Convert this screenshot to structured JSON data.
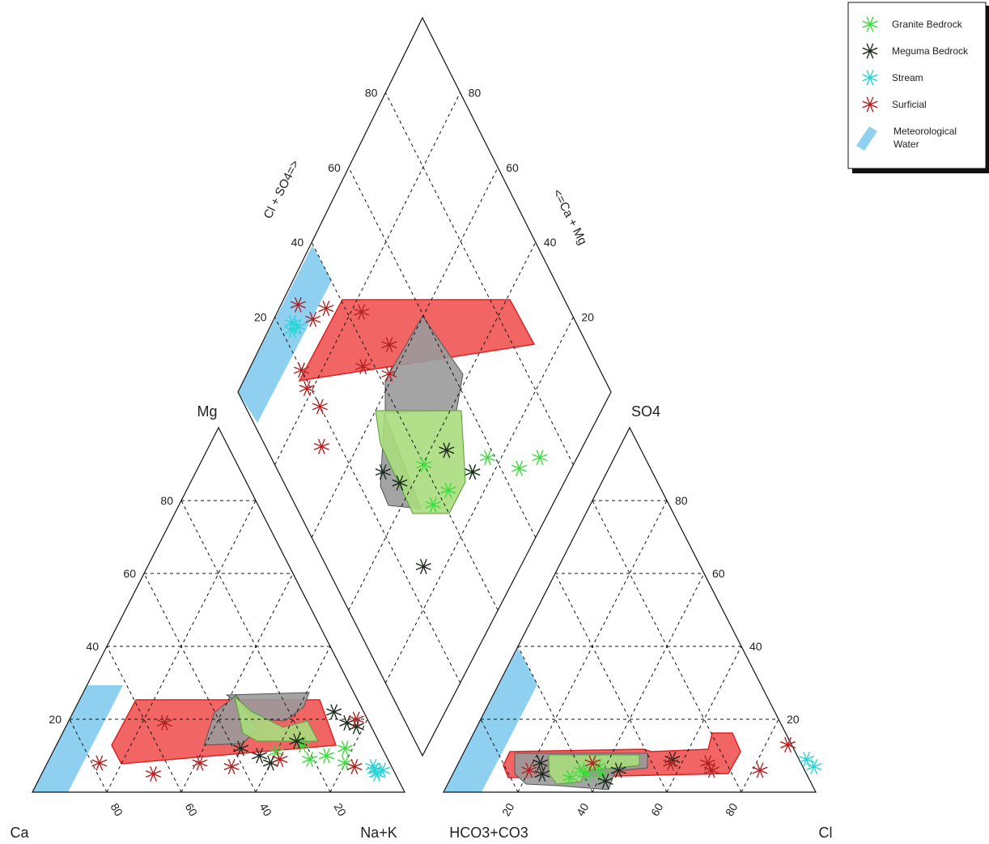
{
  "chart_data": {
    "type": "scatter",
    "subtype": "piper-diagram",
    "grid": true,
    "legend": {
      "placement": "top-right",
      "entries": [
        {
          "name": "Granite Bedrock",
          "color": "#3ddc3d",
          "marker": "asterisk"
        },
        {
          "name": "Meguma Bedrock",
          "color": "#1f2a1f",
          "marker": "asterisk"
        },
        {
          "name": "Stream",
          "color": "#29d3d8",
          "marker": "asterisk"
        },
        {
          "name": "Surficial",
          "color": "#b22222",
          "marker": "asterisk"
        },
        {
          "name": "Meteorological Water",
          "color": "#8fd0f0",
          "marker": "band"
        }
      ]
    },
    "cation_triangle": {
      "corners": {
        "left": "Ca",
        "top": "Mg",
        "right": "Na+K"
      },
      "bottom_ticks": [
        "80",
        "60",
        "40",
        "20"
      ],
      "left_ticks": [
        "80",
        "60",
        "40",
        "20"
      ],
      "series": [
        {
          "name": "Granite Bedrock",
          "points_naK_mg": [
            [
              60,
              11
            ],
            [
              66,
              13
            ],
            [
              70,
              9
            ],
            [
              74,
              10
            ],
            [
              78,
              12
            ],
            [
              80,
              8
            ]
          ]
        },
        {
          "name": "Meguma Bedrock",
          "points_naK_mg": [
            [
              50,
              12
            ],
            [
              56,
              10
            ],
            [
              60,
              8
            ],
            [
              64,
              14
            ],
            [
              70,
              22
            ],
            [
              75,
              19
            ],
            [
              78,
              18
            ]
          ]
        },
        {
          "name": "Stream",
          "points_naK_mg": [
            [
              88,
              7
            ],
            [
              89,
              6
            ],
            [
              91,
              6
            ],
            [
              90,
              5
            ]
          ]
        },
        {
          "name": "Surficial",
          "points_naK_mg": [
            [
              14,
              8
            ],
            [
              26,
              19
            ],
            [
              30,
              5
            ],
            [
              41,
              8
            ],
            [
              50,
              7
            ],
            [
              62,
              9
            ],
            [
              77,
              20
            ],
            [
              83,
              7
            ]
          ]
        }
      ]
    },
    "anion_triangle": {
      "corners": {
        "left": "HCO3+CO3",
        "top": "SO4",
        "right": "Cl"
      },
      "bottom_ticks": [
        "20",
        "40",
        "60",
        "80"
      ],
      "right_ticks": [
        "80",
        "60",
        "40",
        "20"
      ],
      "series": [
        {
          "name": "Granite Bedrock",
          "points_cl_so4": [
            [
              32,
              4
            ],
            [
              34,
              6
            ],
            [
              36,
              5
            ],
            [
              38,
              7
            ],
            [
              40,
              5
            ]
          ]
        },
        {
          "name": "Meguma Bedrock",
          "points_cl_so4": [
            [
              22,
              8
            ],
            [
              24,
              5
            ],
            [
              42,
              3
            ],
            [
              44,
              6
            ],
            [
              57,
              9
            ]
          ]
        },
        {
          "name": "Stream",
          "points_cl_so4": [
            [
              93,
              9
            ],
            [
              96,
              7
            ]
          ]
        },
        {
          "name": "Surficial",
          "points_cl_so4": [
            [
              20,
              6
            ],
            [
              36,
              8
            ],
            [
              57,
              8
            ],
            [
              67,
              8
            ],
            [
              69,
              6
            ],
            [
              82,
              6
            ],
            [
              86,
              13
            ]
          ]
        }
      ]
    },
    "diamond": {
      "upper_left_label": "Cl + SO4=>",
      "upper_right_label": "<=Ca + Mg",
      "upper_left_ticks": [
        "20",
        "40",
        "60",
        "80"
      ],
      "upper_right_ticks": [
        "80",
        "60",
        "40",
        "20"
      ],
      "series": [
        {
          "name": "Granite Bedrock",
          "points_clso4_camg": [
            [
              32,
              63
            ],
            [
              30,
              57
            ],
            [
              26,
              48
            ],
            [
              24,
              42
            ],
            [
              14,
              35
            ],
            [
              10,
              28
            ],
            [
              40,
              60
            ]
          ]
        },
        {
          "name": "Meguma Bedrock",
          "points_clso4_camg": [
            [
              44,
              69
            ],
            [
              36,
              52
            ],
            [
              26,
              48
            ],
            [
              50,
              72
            ],
            [
              26,
              74
            ]
          ]
        },
        {
          "name": "Stream",
          "points_clso4_camg": [
            [
              93,
              75
            ],
            [
              95,
              76
            ],
            [
              94,
              77
            ]
          ]
        },
        {
          "name": "Surficial",
          "points_clso4_camg": [
            [
              82,
              81
            ],
            [
              70,
              85
            ],
            [
              76,
              80
            ],
            [
              62,
              57
            ],
            [
              66,
              53
            ],
            [
              70,
              63
            ],
            [
              78,
              56
            ],
            [
              88,
              65
            ],
            [
              90,
              70
            ],
            [
              96,
              72
            ],
            [
              86,
              80
            ]
          ]
        }
      ]
    }
  }
}
